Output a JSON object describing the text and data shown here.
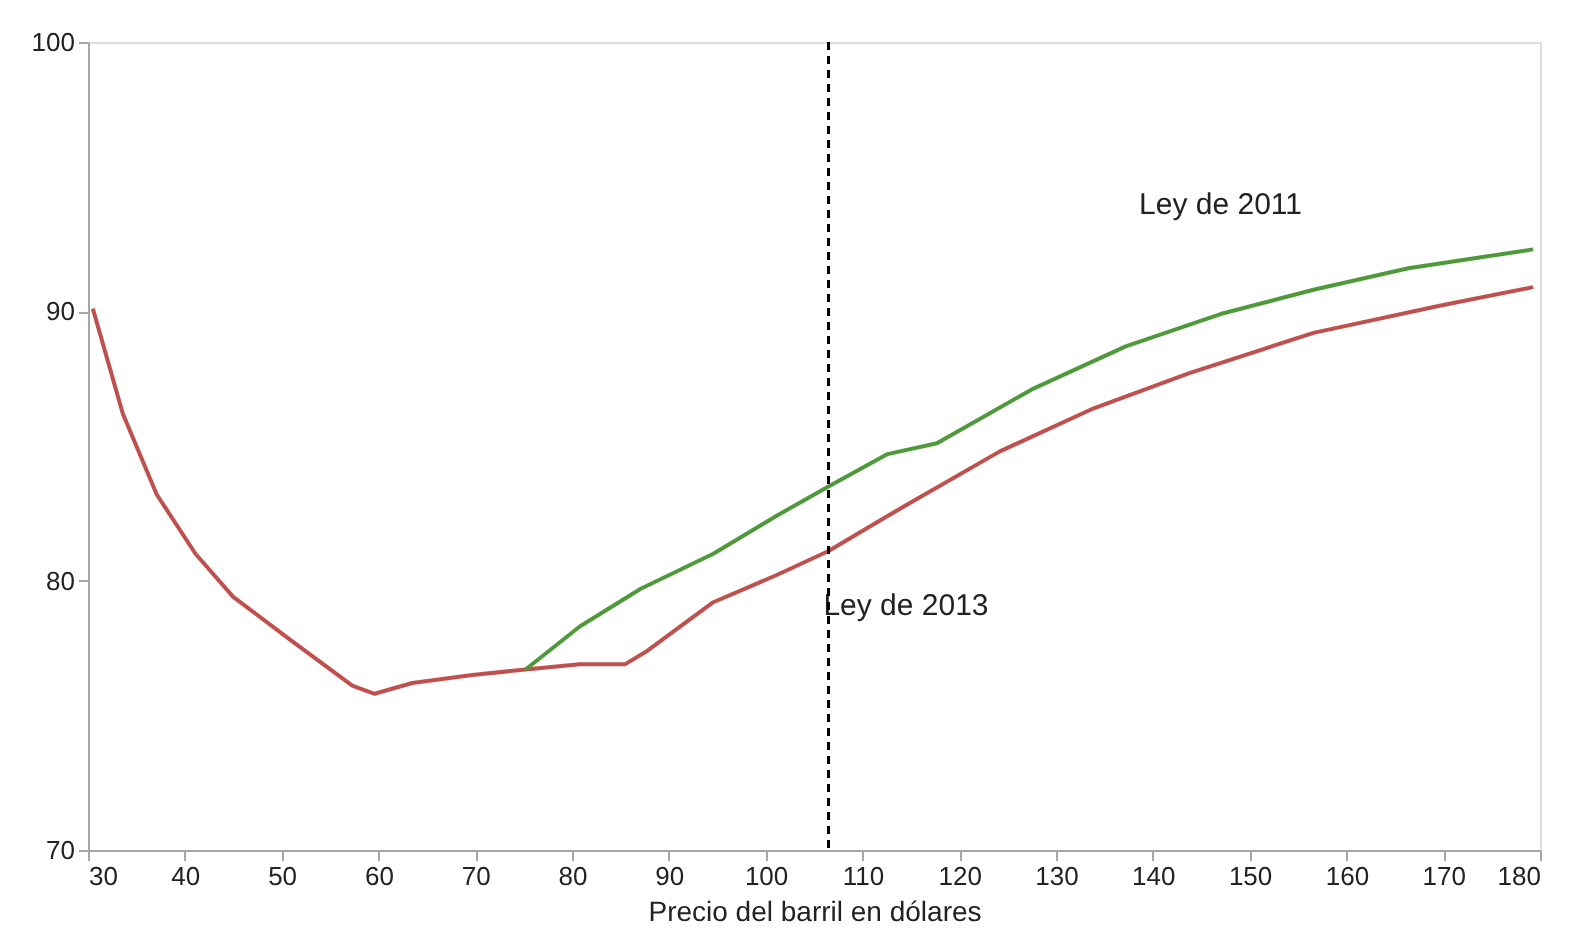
{
  "chart_data": {
    "type": "line",
    "xlabel": "Precio del barril en dólares",
    "xlim": [
      30,
      180
    ],
    "xticks": [
      30,
      40,
      50,
      60,
      70,
      80,
      90,
      100,
      110,
      120,
      130,
      140,
      150,
      160,
      170,
      180
    ],
    "ylim": [
      70,
      100
    ],
    "yticks": [
      70,
      80,
      90,
      100
    ],
    "grid": false,
    "legend": false,
    "marker": "none",
    "line_style": "solid",
    "series": [
      {
        "name": "Ley de 2011",
        "color": "#4e9a3a",
        "x": [
          75.2,
          80.8,
          87.1,
          94.6,
          101.1,
          106.5,
          112.6,
          117.7,
          127.5,
          137.2,
          147,
          156.6,
          166.4,
          179.3
        ],
        "values": [
          76.7,
          78.3,
          79.7,
          81,
          82.4,
          83.5,
          84.7,
          85.1,
          87.1,
          88.7,
          89.9,
          90.8,
          91.6,
          92.3
        ]
      },
      {
        "name": "Ley de 2013",
        "color": "#c0504d",
        "x": [
          30.5,
          33.6,
          37.1,
          41.1,
          45,
          50.9,
          57.3,
          59.6,
          63.5,
          69.7,
          75.2,
          80.8,
          85.5,
          87.8,
          94.6,
          101.1,
          106.5,
          112.6,
          114.5,
          124.2,
          133.9,
          143.7,
          156.6,
          169.5,
          179.3
        ],
        "values": [
          90.1,
          86.2,
          83.2,
          81,
          79.4,
          77.8,
          76.1,
          75.8,
          76.2,
          76.5,
          76.7,
          76.9,
          76.9,
          77.4,
          79.2,
          80.2,
          81.1,
          82.4,
          82.8,
          84.8,
          86.4,
          87.7,
          89.2,
          90.2,
          90.9
        ]
      }
    ],
    "ref_lines": [
      {
        "axis": "x",
        "value": 106.5,
        "color": "#000000",
        "line_style": "dashed"
      }
    ]
  }
}
